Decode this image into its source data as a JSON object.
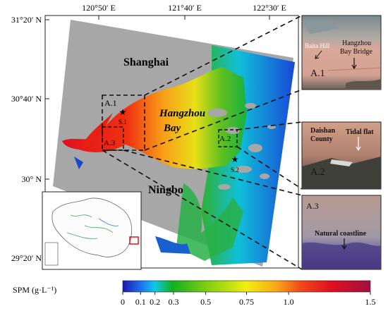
{
  "map": {
    "lon_ticks": [
      "120°50′ E",
      "121°40′ E",
      "122°30′ E"
    ],
    "lat_ticks": [
      "31°20′ N",
      "30°40′ N",
      "30° N",
      "29°20′ N"
    ],
    "places": {
      "shanghai": "Shanghai",
      "hangzhou_bay_1": "Hangzhou",
      "hangzhou_bay_2": "Bay",
      "ningbo": "Ningbo"
    },
    "box_labels": {
      "a1": "A.1",
      "a2": "A.2",
      "a3": "A.3"
    },
    "stations": {
      "s1": "S.1",
      "s2": "S.2"
    }
  },
  "insets": {
    "a1": {
      "id": "A.1",
      "labels": [
        "Baita Hill",
        "Hangzhou",
        "Bay Bridge"
      ]
    },
    "a2": {
      "id": "A.2",
      "labels": [
        "Daishan",
        "County",
        "Tidal flat"
      ]
    },
    "a3": {
      "id": "A.3",
      "labels": [
        "Natural coastline"
      ]
    }
  },
  "colorbar": {
    "title": "SPM (g·L⁻¹)",
    "ticks": [
      "0",
      "0.1",
      "0.2",
      "0.3",
      "0.5",
      "0.75",
      "1.0",
      "1.5"
    ],
    "values": [
      0,
      0.1,
      0.2,
      0.3,
      0.5,
      0.75,
      1.0,
      1.5
    ],
    "range": [
      0,
      1.5
    ],
    "stops": [
      "#1a1aa8",
      "#1e6cf0",
      "#10c8ea",
      "#10b020",
      "#78cc10",
      "#f2ee10",
      "#f8a818",
      "#f04818",
      "#e01020",
      "#a01040"
    ]
  }
}
